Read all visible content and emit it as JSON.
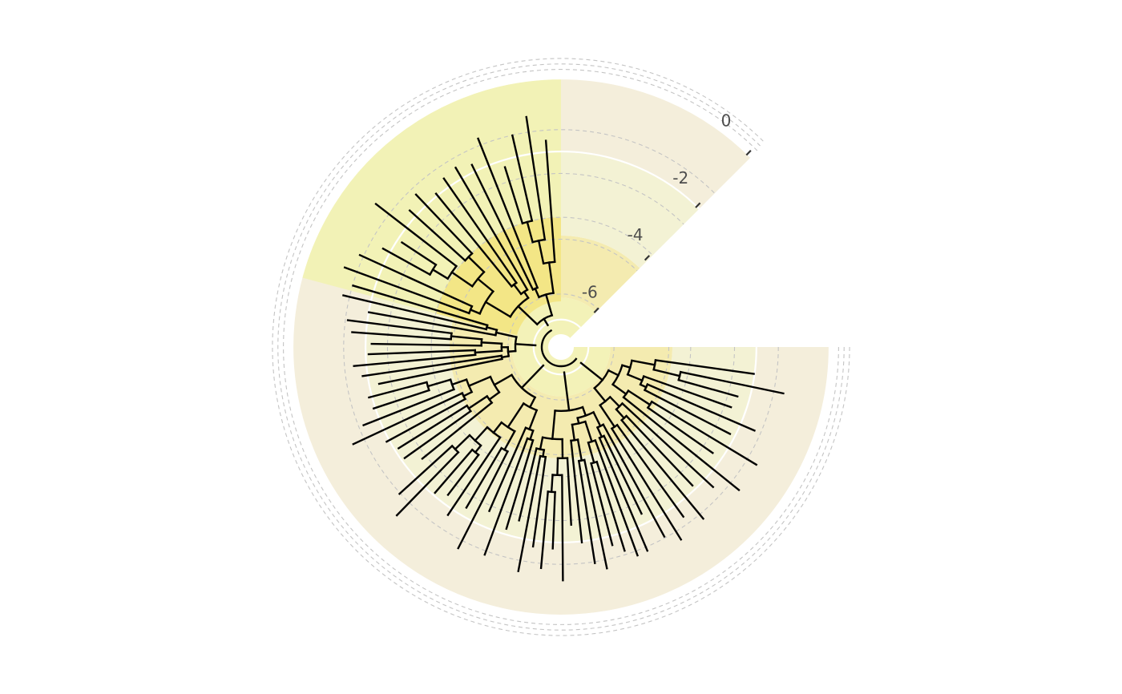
{
  "timescale": {
    "axis_ticks": [
      "0",
      "-2",
      "-4",
      "-6"
    ],
    "tick_values": [
      0,
      -2,
      -4,
      -6
    ],
    "units": "",
    "bands": [
      {
        "from": -7.0,
        "to": -6.0,
        "color": "#f3f2b8"
      },
      {
        "from": -6.0,
        "to": -4.3,
        "color": "#f4ebb0"
      },
      {
        "from": -4.3,
        "to": -2.0,
        "color": "#f3f2d4"
      },
      {
        "from": -2.0,
        "to": 0.0,
        "color": "#f4eedb"
      }
    ],
    "highlight_clade_color": "#f3e686",
    "highlight_clade_outer_color": "#f2f2b6"
  },
  "tree": {
    "branch_color": "#000000"
  }
}
